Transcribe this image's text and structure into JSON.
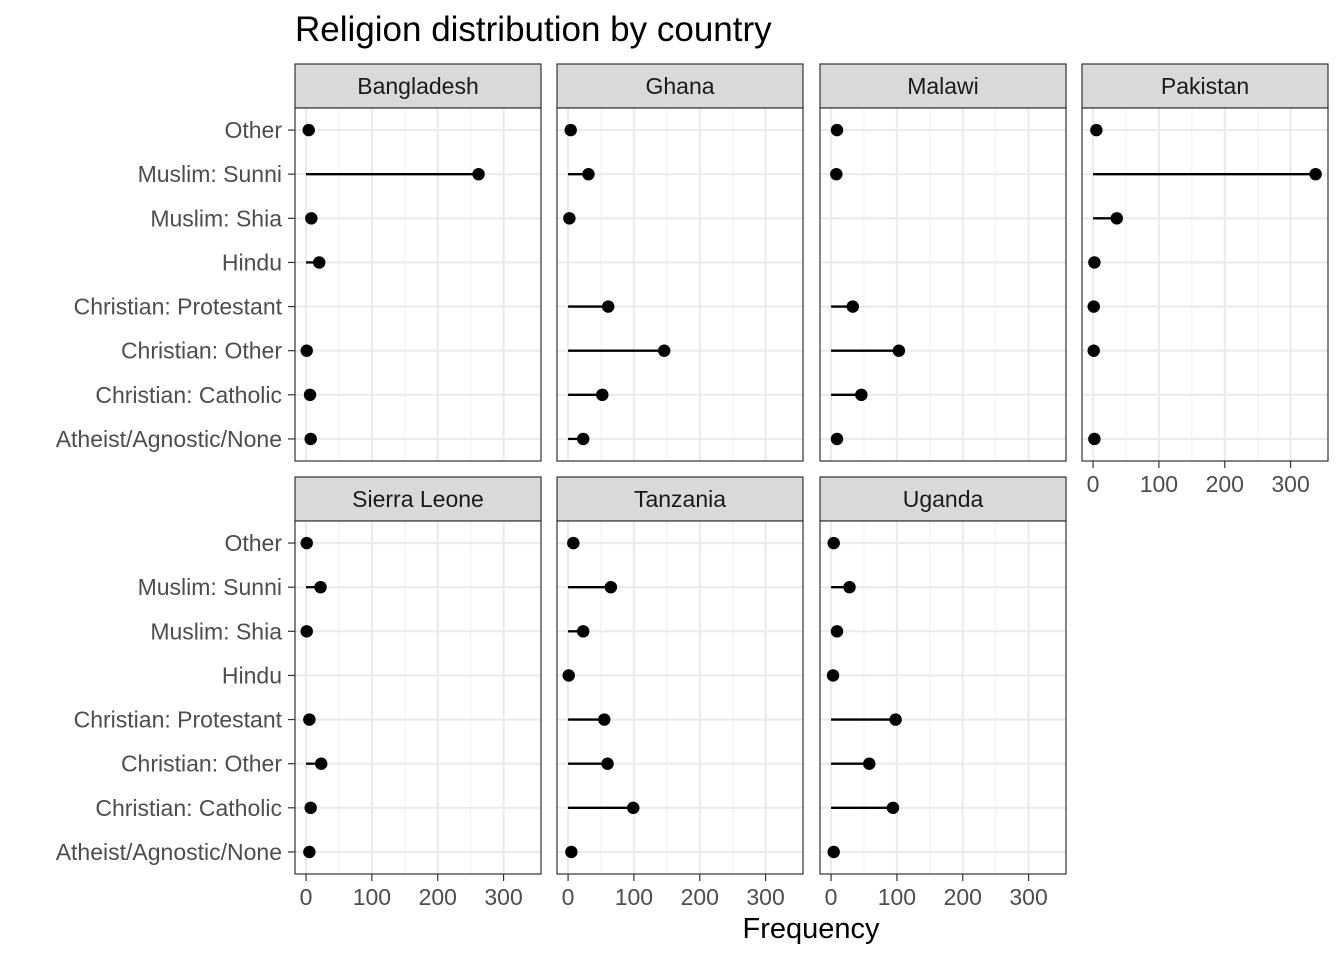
{
  "chart_data": {
    "type": "lollipop",
    "title": "Religion distribution by country",
    "xlabel": "Frequency",
    "ylabel": "",
    "xlim": [
      0,
      340
    ],
    "x_ticks": [
      0,
      100,
      200,
      300
    ],
    "grid": true,
    "categories": [
      "Atheist/Agnostic/None",
      "Christian: Catholic",
      "Christian: Other",
      "Christian: Protestant",
      "Hindu",
      "Muslim: Shia",
      "Muslim: Sunni",
      "Other"
    ],
    "panels": [
      {
        "name": "Bangladesh",
        "values": [
          7,
          6,
          1,
          0,
          20,
          8,
          262,
          4
        ]
      },
      {
        "name": "Ghana",
        "values": [
          23,
          52,
          146,
          61,
          0,
          2,
          31,
          4
        ]
      },
      {
        "name": "Malawi",
        "values": [
          9,
          46,
          103,
          33,
          0,
          0,
          8,
          9
        ]
      },
      {
        "name": "Pakistan",
        "values": [
          2,
          0,
          1,
          1,
          2,
          36,
          338,
          5
        ]
      },
      {
        "name": "Sierra Leone",
        "values": [
          5,
          7,
          23,
          5,
          0,
          1,
          22,
          1
        ]
      },
      {
        "name": "Tanzania",
        "values": [
          5,
          99,
          60,
          55,
          1,
          23,
          65,
          8
        ]
      },
      {
        "name": "Uganda",
        "values": [
          4,
          94,
          58,
          98,
          3,
          9,
          28,
          4
        ]
      }
    ]
  }
}
